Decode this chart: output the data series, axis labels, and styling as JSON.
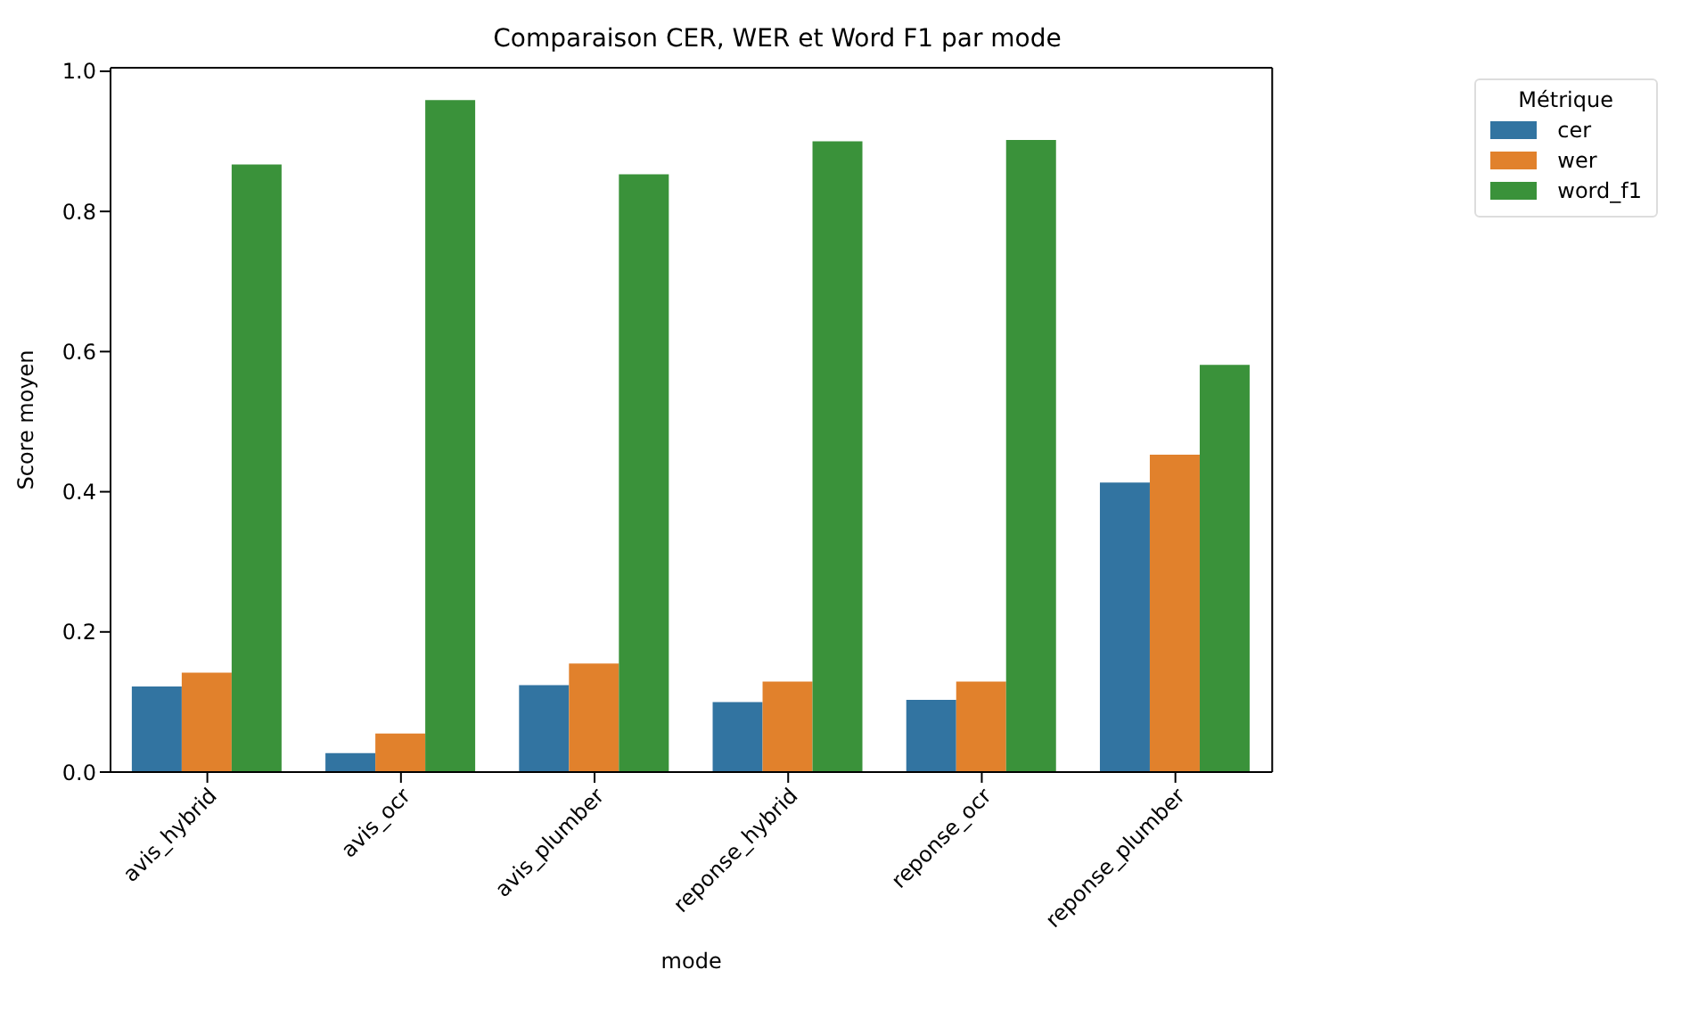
{
  "chart_data": {
    "type": "bar",
    "title": "Comparaison CER, WER et Word F1 par mode",
    "xlabel": "mode",
    "ylabel": "Score moyen",
    "legend_title": "Métrique",
    "categories": [
      "avis_hybrid",
      "avis_ocr",
      "avis_plumber",
      "reponse_hybrid",
      "reponse_ocr",
      "reponse_plumber"
    ],
    "series": [
      {
        "name": "cer",
        "color": "#3274a1",
        "values": [
          0.122,
          0.027,
          0.124,
          0.1,
          0.103,
          0.413
        ]
      },
      {
        "name": "wer",
        "color": "#e1812c",
        "values": [
          0.142,
          0.055,
          0.155,
          0.129,
          0.129,
          0.453
        ]
      },
      {
        "name": "word_f1",
        "color": "#3a923a",
        "values": [
          0.867,
          0.959,
          0.853,
          0.9,
          0.902,
          0.581
        ]
      }
    ],
    "ylim": [
      0,
      1.005
    ],
    "yticks": [
      {
        "value": 0,
        "label": "0.0"
      },
      {
        "value": 0.2,
        "label": "0.2"
      },
      {
        "value": 0.4,
        "label": "0.4"
      },
      {
        "value": 0.6,
        "label": "0.6"
      },
      {
        "value": 0.8,
        "label": "0.8"
      },
      {
        "value": 1,
        "label": "1.0"
      }
    ],
    "legend": "top right"
  }
}
